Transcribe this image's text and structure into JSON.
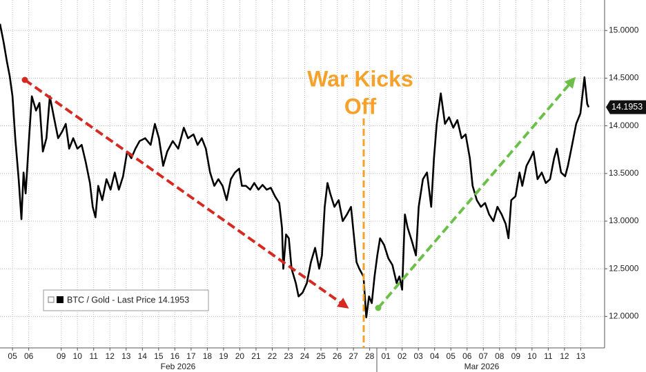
{
  "chart_data": {
    "type": "line",
    "series": [
      {
        "name": "BTC / Gold - Last Price 14.1953",
        "color": "#000000",
        "x": [
          -0.77,
          -0.55,
          -0.34,
          -0.17,
          0,
          0.17,
          0.38,
          0.55,
          0.68,
          0.81,
          1.02,
          1.19,
          1.45,
          1.66,
          1.87,
          2.09,
          2.3,
          2.55,
          2.81,
          3.06,
          3.28,
          3.49,
          3.74,
          4.0,
          4.26,
          4.51,
          4.77,
          4.94,
          5.11,
          5.28,
          5.53,
          5.79,
          6.04,
          6.3,
          6.55,
          6.81,
          7.06,
          7.32,
          7.57,
          7.83,
          8.17,
          8.51,
          8.77,
          9.02,
          9.28,
          9.53,
          9.87,
          10.21,
          10.55,
          10.81,
          11.15,
          11.4,
          11.66,
          11.91,
          12.17,
          12.43,
          12.68,
          12.94,
          13.19,
          13.45,
          13.7,
          13.96,
          14.13,
          14.38,
          14.64,
          14.89,
          15.15,
          15.4,
          15.66,
          15.91,
          16.17,
          16.43,
          16.6,
          16.68,
          16.85,
          17.02,
          17.19,
          17.45,
          17.62,
          17.87,
          18.13,
          18.38,
          18.64,
          18.89,
          19.06,
          19.23,
          19.4,
          19.57,
          19.83,
          20.09,
          20.34,
          20.6,
          20.85,
          21.02,
          21.19,
          21.36,
          21.62,
          21.79,
          21.96,
          22.13,
          22.3,
          22.47,
          22.64,
          22.89,
          23.15,
          23.4,
          23.66,
          23.83,
          24.0,
          24.17,
          24.34,
          24.6,
          24.85,
          25.02,
          25.28,
          25.53,
          25.79,
          25.96,
          26.13,
          26.38,
          26.64,
          26.89,
          27.15,
          27.4,
          27.66,
          27.91,
          28.17,
          28.34,
          28.6,
          28.85,
          29.11,
          29.36,
          29.62,
          29.87,
          30.13,
          30.38,
          30.55,
          30.72,
          30.98,
          31.23,
          31.4,
          31.66,
          31.91,
          32.09,
          32.34,
          32.6,
          32.85,
          33.11,
          33.36,
          33.53,
          33.79,
          34.04,
          34.21,
          34.47,
          34.72,
          34.98,
          35.23,
          35.4,
          35.49
        ],
        "values": [
          15.07,
          14.88,
          14.67,
          14.52,
          14.31,
          13.87,
          13.44,
          13.02,
          13.51,
          13.29,
          13.87,
          14.31,
          14.16,
          14.24,
          13.73,
          13.87,
          14.31,
          14.09,
          13.87,
          13.94,
          14.02,
          13.76,
          13.87,
          13.76,
          13.8,
          13.62,
          13.4,
          13.15,
          13.04,
          13.37,
          13.22,
          13.44,
          13.33,
          13.51,
          13.33,
          13.47,
          13.73,
          13.66,
          13.76,
          13.84,
          13.87,
          13.8,
          14.02,
          13.87,
          13.58,
          13.73,
          13.84,
          13.76,
          13.98,
          13.87,
          13.91,
          13.8,
          13.87,
          13.76,
          13.51,
          13.37,
          13.44,
          13.37,
          13.22,
          13.44,
          13.51,
          13.55,
          13.37,
          13.37,
          13.33,
          13.4,
          13.33,
          13.38,
          13.33,
          13.35,
          13.26,
          13.19,
          12.93,
          12.5,
          12.86,
          12.82,
          12.5,
          12.35,
          12.21,
          12.25,
          12.35,
          12.57,
          12.72,
          12.5,
          12.64,
          13.15,
          13.4,
          13.29,
          13.15,
          13.22,
          13.0,
          13.07,
          13.15,
          12.86,
          12.57,
          12.5,
          12.42,
          11.99,
          12.21,
          12.14,
          12.42,
          12.64,
          12.82,
          12.75,
          12.61,
          12.54,
          12.35,
          12.42,
          12.28,
          13.07,
          12.93,
          12.79,
          12.64,
          13.15,
          13.44,
          13.51,
          13.15,
          13.66,
          14.02,
          14.34,
          14.02,
          14.09,
          13.98,
          14.06,
          13.87,
          13.91,
          13.66,
          13.37,
          13.22,
          13.15,
          13.19,
          13.07,
          13.0,
          13.15,
          13.07,
          12.97,
          12.82,
          13.22,
          13.26,
          13.51,
          13.37,
          13.58,
          13.66,
          13.73,
          13.44,
          13.51,
          13.4,
          13.44,
          13.66,
          13.76,
          13.51,
          13.47,
          13.58,
          13.8,
          14.02,
          14.13,
          14.51,
          14.23,
          14.1953
        ]
      }
    ],
    "last_price": 14.1953,
    "annotation": [
      "War Kicks",
      "Off"
    ],
    "x_groups": [
      "Feb 2026",
      "Mar 2026"
    ],
    "xlim": [
      -0.77,
      36.47
    ],
    "xticks": [
      {
        "value": 0,
        "label": "05"
      },
      {
        "value": 1,
        "label": "06"
      },
      {
        "value": 3,
        "label": "09"
      },
      {
        "value": 4,
        "label": "10"
      },
      {
        "value": 5,
        "label": "11"
      },
      {
        "value": 6,
        "label": "12"
      },
      {
        "value": 7,
        "label": "13"
      },
      {
        "value": 8,
        "label": "14"
      },
      {
        "value": 9,
        "label": "15"
      },
      {
        "value": 10,
        "label": "16"
      },
      {
        "value": 11,
        "label": "17"
      },
      {
        "value": 12,
        "label": "18"
      },
      {
        "value": 13,
        "label": "19"
      },
      {
        "value": 14,
        "label": "20"
      },
      {
        "value": 15,
        "label": "21"
      },
      {
        "value": 16,
        "label": "22"
      },
      {
        "value": 17,
        "label": "23"
      },
      {
        "value": 18,
        "label": "24"
      },
      {
        "value": 19,
        "label": "25"
      },
      {
        "value": 20,
        "label": "26"
      },
      {
        "value": 21,
        "label": "27"
      },
      {
        "value": 22,
        "label": "28"
      },
      {
        "value": 23,
        "label": "01"
      },
      {
        "value": 24,
        "label": "02"
      },
      {
        "value": 25,
        "label": "03"
      },
      {
        "value": 26,
        "label": "04"
      },
      {
        "value": 27,
        "label": "05"
      },
      {
        "value": 28,
        "label": "06"
      },
      {
        "value": 29,
        "label": "07"
      },
      {
        "value": 30,
        "label": "08"
      },
      {
        "value": 31,
        "label": "09"
      },
      {
        "value": 32,
        "label": "10"
      },
      {
        "value": 33,
        "label": "11"
      },
      {
        "value": 34,
        "label": "12"
      },
      {
        "value": 35,
        "label": "13"
      }
    ],
    "ylim": [
      11.67,
      15.32
    ],
    "yticks": [
      {
        "value": 12,
        "label": "12.0000"
      },
      {
        "value": 12.5,
        "label": "12.5000"
      },
      {
        "value": 13,
        "label": "13.0000"
      },
      {
        "value": 13.5,
        "label": "13.5000"
      },
      {
        "value": 14,
        "label": "14.0000"
      },
      {
        "value": 14.5,
        "label": "14.5000"
      },
      {
        "value": 15,
        "label": "15.0000"
      }
    ],
    "grid": true
  }
}
